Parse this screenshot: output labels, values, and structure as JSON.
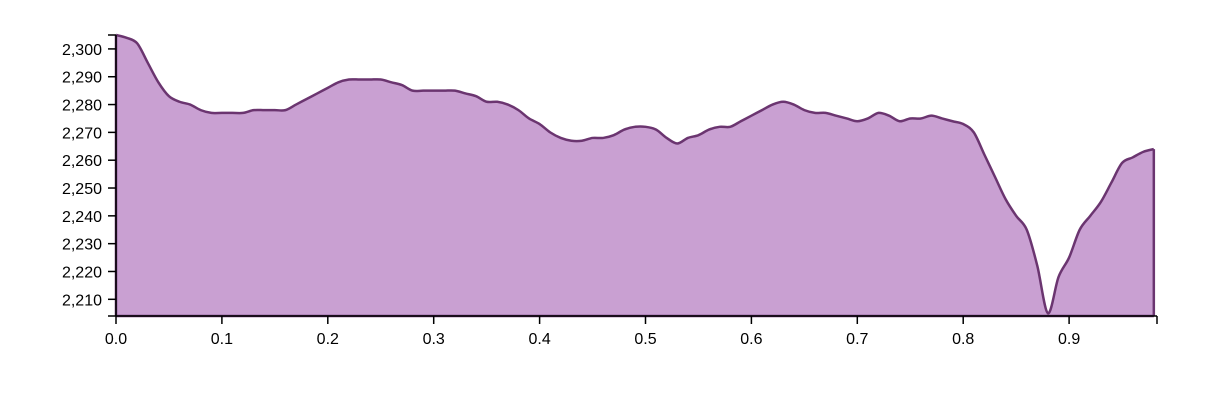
{
  "chart_data": {
    "type": "area",
    "title": "",
    "xlabel": "",
    "ylabel": "",
    "xlim": [
      0,
      0.983
    ],
    "ylim": [
      2204,
      2305
    ],
    "grid": false,
    "x_ticks": [
      0.0,
      0.1,
      0.2,
      0.3,
      0.4,
      0.5,
      0.6,
      0.7,
      0.8,
      0.9
    ],
    "x_tick_labels": [
      "0.0",
      "0.1",
      "0.2",
      "0.3",
      "0.4",
      "0.5",
      "0.6",
      "0.7",
      "0.8",
      "0.9"
    ],
    "y_ticks": [
      2210,
      2220,
      2230,
      2240,
      2250,
      2260,
      2270,
      2280,
      2290,
      2300
    ],
    "y_tick_labels": [
      "2,210",
      "2,220",
      "2,230",
      "2,240",
      "2,250",
      "2,260",
      "2,270",
      "2,280",
      "2,290",
      "2,300"
    ],
    "colors": {
      "fill": "#c9a0d2",
      "stroke": "#6b3570"
    },
    "series": [
      {
        "x": [
          0.0,
          0.01,
          0.02,
          0.03,
          0.04,
          0.05,
          0.06,
          0.07,
          0.08,
          0.09,
          0.1,
          0.11,
          0.12,
          0.13,
          0.14,
          0.15,
          0.16,
          0.17,
          0.18,
          0.19,
          0.2,
          0.21,
          0.22,
          0.23,
          0.24,
          0.25,
          0.26,
          0.27,
          0.28,
          0.29,
          0.3,
          0.31,
          0.32,
          0.33,
          0.34,
          0.35,
          0.36,
          0.37,
          0.38,
          0.39,
          0.4,
          0.41,
          0.42,
          0.43,
          0.44,
          0.45,
          0.46,
          0.47,
          0.48,
          0.49,
          0.5,
          0.51,
          0.52,
          0.53,
          0.54,
          0.55,
          0.56,
          0.57,
          0.58,
          0.59,
          0.6,
          0.61,
          0.62,
          0.63,
          0.64,
          0.65,
          0.66,
          0.67,
          0.68,
          0.69,
          0.7,
          0.71,
          0.72,
          0.73,
          0.74,
          0.75,
          0.76,
          0.77,
          0.78,
          0.79,
          0.8,
          0.81,
          0.82,
          0.83,
          0.84,
          0.85,
          0.86,
          0.87,
          0.88,
          0.89,
          0.9,
          0.91,
          0.92,
          0.93,
          0.94,
          0.95,
          0.96,
          0.97,
          0.98
        ],
        "values": [
          2305,
          2304,
          2302,
          2295,
          2288,
          2283,
          2281,
          2280,
          2278,
          2277,
          2277,
          2277,
          2277,
          2278,
          2278,
          2278,
          2278,
          2280,
          2282,
          2284,
          2286,
          2288,
          2289,
          2289,
          2289,
          2289,
          2288,
          2287,
          2285,
          2285,
          2285,
          2285,
          2285,
          2284,
          2283,
          2281,
          2281,
          2280,
          2278,
          2275,
          2273,
          2270,
          2268,
          2267,
          2267,
          2268,
          2268,
          2269,
          2271,
          2272,
          2272,
          2271,
          2268,
          2266,
          2268,
          2269,
          2271,
          2272,
          2272,
          2274,
          2276,
          2278,
          2280,
          2281,
          2280,
          2278,
          2277,
          2277,
          2276,
          2275,
          2274,
          2275,
          2277,
          2276,
          2274,
          2275,
          2275,
          2276,
          2275,
          2274,
          2273,
          2270,
          2262,
          2254,
          2246,
          2240,
          2235,
          2222,
          2205,
          2218,
          2225,
          2235,
          2240,
          2245,
          2252,
          2259,
          2261,
          2263,
          2264
        ]
      }
    ]
  }
}
